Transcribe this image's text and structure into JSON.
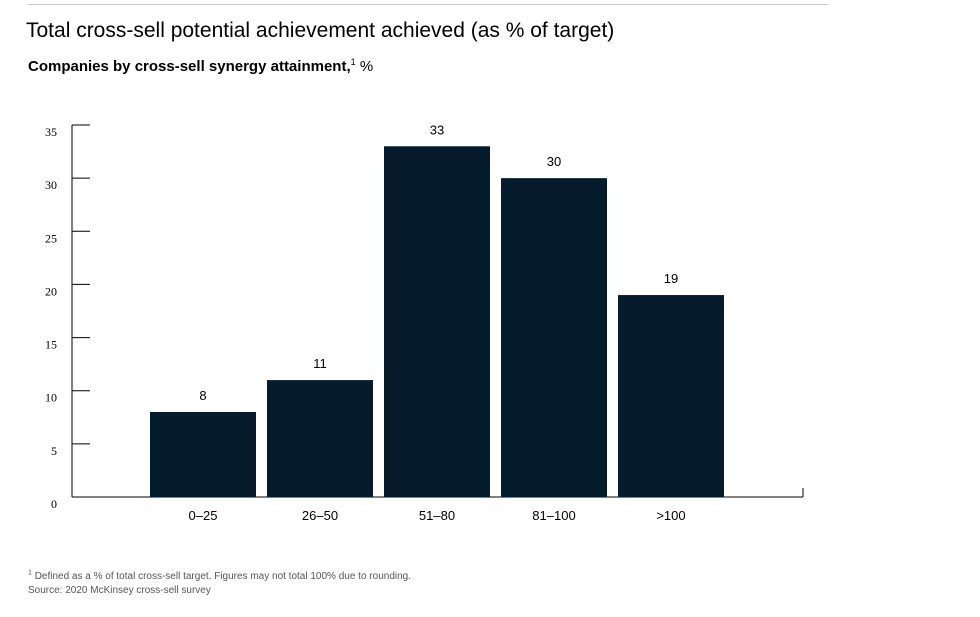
{
  "chart_data": {
    "type": "bar",
    "title": "Total cross-sell potential achievement achieved (as % of target)",
    "subtitle": "Companies by cross-sell synergy attainment,",
    "subtitle_sup": "1",
    "unit": "%",
    "categories": [
      "0–25",
      "26–50",
      "51–80",
      "81–100",
      ">100"
    ],
    "values": [
      8,
      11,
      33,
      30,
      19
    ],
    "xlabel": "",
    "ylabel": "",
    "ylim": [
      0,
      35
    ],
    "yticks": [
      0,
      5,
      10,
      15,
      20,
      25,
      30,
      35
    ],
    "bar_color": "#061c2c",
    "grid": false
  },
  "footnote": {
    "marker": "1",
    "text": "Defined as a % of total cross-sell target. Figures may not total 100% due to rounding."
  },
  "source": "Source:  2020 McKinsey cross-sell survey"
}
